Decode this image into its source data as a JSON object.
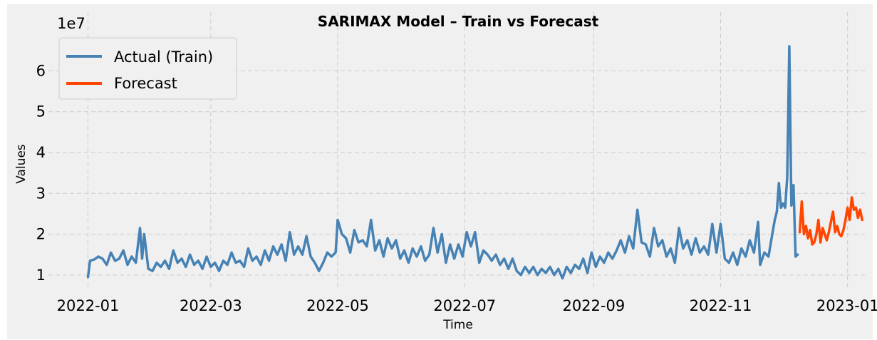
{
  "chart_data": {
    "type": "line",
    "title": "SARIMAX Model – Train vs Forecast",
    "xlabel": "Time",
    "ylabel": "Values",
    "y_offset_label": "1e7",
    "xlim": [
      "2021-12-13",
      "2023-01-10"
    ],
    "ylim": [
      0.7,
      6.95
    ],
    "x_ticks": [
      "2022-01",
      "2022-03",
      "2022-05",
      "2022-07",
      "2022-09",
      "2022-11",
      "2023-01"
    ],
    "y_ticks": [
      1,
      2,
      3,
      4,
      5,
      6
    ],
    "grid": true,
    "legend_position": "top-left",
    "series": [
      {
        "name": "Actual (Train)",
        "color": "#4682b4",
        "points": [
          [
            "2022-01-01",
            0.95
          ],
          [
            "2022-01-02",
            1.35
          ],
          [
            "2022-01-04",
            1.38
          ],
          [
            "2022-01-06",
            1.45
          ],
          [
            "2022-01-08",
            1.4
          ],
          [
            "2022-01-10",
            1.25
          ],
          [
            "2022-01-12",
            1.55
          ],
          [
            "2022-01-14",
            1.35
          ],
          [
            "2022-01-16",
            1.4
          ],
          [
            "2022-01-18",
            1.6
          ],
          [
            "2022-01-20",
            1.25
          ],
          [
            "2022-01-22",
            1.45
          ],
          [
            "2022-01-24",
            1.3
          ],
          [
            "2022-01-26",
            2.15
          ],
          [
            "2022-01-27",
            1.4
          ],
          [
            "2022-01-28",
            2.0
          ],
          [
            "2022-01-30",
            1.15
          ],
          [
            "2022-02-01",
            1.1
          ],
          [
            "2022-02-03",
            1.3
          ],
          [
            "2022-02-05",
            1.2
          ],
          [
            "2022-02-07",
            1.35
          ],
          [
            "2022-02-09",
            1.15
          ],
          [
            "2022-02-11",
            1.6
          ],
          [
            "2022-02-13",
            1.3
          ],
          [
            "2022-02-15",
            1.4
          ],
          [
            "2022-02-17",
            1.2
          ],
          [
            "2022-02-19",
            1.5
          ],
          [
            "2022-02-21",
            1.25
          ],
          [
            "2022-02-23",
            1.35
          ],
          [
            "2022-02-25",
            1.15
          ],
          [
            "2022-02-27",
            1.45
          ],
          [
            "2022-03-01",
            1.2
          ],
          [
            "2022-03-03",
            1.3
          ],
          [
            "2022-03-05",
            1.1
          ],
          [
            "2022-03-07",
            1.35
          ],
          [
            "2022-03-09",
            1.25
          ],
          [
            "2022-03-11",
            1.55
          ],
          [
            "2022-03-13",
            1.3
          ],
          [
            "2022-03-15",
            1.35
          ],
          [
            "2022-03-17",
            1.2
          ],
          [
            "2022-03-19",
            1.65
          ],
          [
            "2022-03-21",
            1.35
          ],
          [
            "2022-03-23",
            1.45
          ],
          [
            "2022-03-25",
            1.25
          ],
          [
            "2022-03-27",
            1.6
          ],
          [
            "2022-03-29",
            1.35
          ],
          [
            "2022-03-31",
            1.7
          ],
          [
            "2022-04-02",
            1.5
          ],
          [
            "2022-04-04",
            1.75
          ],
          [
            "2022-04-06",
            1.35
          ],
          [
            "2022-04-08",
            2.05
          ],
          [
            "2022-04-10",
            1.5
          ],
          [
            "2022-04-12",
            1.7
          ],
          [
            "2022-04-14",
            1.5
          ],
          [
            "2022-04-16",
            1.95
          ],
          [
            "2022-04-18",
            1.45
          ],
          [
            "2022-04-20",
            1.3
          ],
          [
            "2022-04-22",
            1.1
          ],
          [
            "2022-04-24",
            1.3
          ],
          [
            "2022-04-26",
            1.55
          ],
          [
            "2022-04-28",
            1.45
          ],
          [
            "2022-04-30",
            1.55
          ],
          [
            "2022-05-01",
            2.35
          ],
          [
            "2022-05-03",
            2.0
          ],
          [
            "2022-05-05",
            1.9
          ],
          [
            "2022-05-07",
            1.55
          ],
          [
            "2022-05-09",
            2.1
          ],
          [
            "2022-05-11",
            1.8
          ],
          [
            "2022-05-13",
            1.85
          ],
          [
            "2022-05-15",
            1.7
          ],
          [
            "2022-05-17",
            2.35
          ],
          [
            "2022-05-19",
            1.6
          ],
          [
            "2022-05-21",
            1.85
          ],
          [
            "2022-05-23",
            1.45
          ],
          [
            "2022-05-25",
            1.9
          ],
          [
            "2022-05-27",
            1.65
          ],
          [
            "2022-05-29",
            1.85
          ],
          [
            "2022-05-31",
            1.4
          ],
          [
            "2022-06-02",
            1.6
          ],
          [
            "2022-06-04",
            1.3
          ],
          [
            "2022-06-06",
            1.65
          ],
          [
            "2022-06-08",
            1.45
          ],
          [
            "2022-06-10",
            1.7
          ],
          [
            "2022-06-12",
            1.35
          ],
          [
            "2022-06-14",
            1.5
          ],
          [
            "2022-06-16",
            2.15
          ],
          [
            "2022-06-18",
            1.55
          ],
          [
            "2022-06-20",
            2.0
          ],
          [
            "2022-06-22",
            1.3
          ],
          [
            "2022-06-24",
            1.75
          ],
          [
            "2022-06-26",
            1.4
          ],
          [
            "2022-06-28",
            1.75
          ],
          [
            "2022-06-30",
            1.45
          ],
          [
            "2022-07-02",
            2.05
          ],
          [
            "2022-07-04",
            1.7
          ],
          [
            "2022-07-06",
            2.05
          ],
          [
            "2022-07-08",
            1.3
          ],
          [
            "2022-07-10",
            1.6
          ],
          [
            "2022-07-12",
            1.5
          ],
          [
            "2022-07-14",
            1.35
          ],
          [
            "2022-07-16",
            1.5
          ],
          [
            "2022-07-18",
            1.25
          ],
          [
            "2022-07-20",
            1.4
          ],
          [
            "2022-07-22",
            1.15
          ],
          [
            "2022-07-24",
            1.4
          ],
          [
            "2022-07-26",
            1.1
          ],
          [
            "2022-07-28",
            1.0
          ],
          [
            "2022-07-30",
            1.2
          ],
          [
            "2022-08-01",
            1.05
          ],
          [
            "2022-08-03",
            1.2
          ],
          [
            "2022-08-05",
            1.0
          ],
          [
            "2022-08-07",
            1.15
          ],
          [
            "2022-08-09",
            1.05
          ],
          [
            "2022-08-11",
            1.2
          ],
          [
            "2022-08-13",
            1.0
          ],
          [
            "2022-08-15",
            1.15
          ],
          [
            "2022-08-17",
            0.92
          ],
          [
            "2022-08-19",
            1.2
          ],
          [
            "2022-08-21",
            1.05
          ],
          [
            "2022-08-23",
            1.25
          ],
          [
            "2022-08-25",
            1.15
          ],
          [
            "2022-08-27",
            1.4
          ],
          [
            "2022-08-29",
            1.05
          ],
          [
            "2022-08-31",
            1.55
          ],
          [
            "2022-09-02",
            1.2
          ],
          [
            "2022-09-04",
            1.45
          ],
          [
            "2022-09-06",
            1.3
          ],
          [
            "2022-09-08",
            1.55
          ],
          [
            "2022-09-10",
            1.4
          ],
          [
            "2022-09-12",
            1.6
          ],
          [
            "2022-09-14",
            1.85
          ],
          [
            "2022-09-16",
            1.55
          ],
          [
            "2022-09-18",
            1.95
          ],
          [
            "2022-09-20",
            1.65
          ],
          [
            "2022-09-22",
            2.6
          ],
          [
            "2022-09-24",
            1.8
          ],
          [
            "2022-09-26",
            1.75
          ],
          [
            "2022-09-28",
            1.45
          ],
          [
            "2022-09-30",
            2.15
          ],
          [
            "2022-10-02",
            1.7
          ],
          [
            "2022-10-04",
            1.85
          ],
          [
            "2022-10-06",
            1.45
          ],
          [
            "2022-10-08",
            1.65
          ],
          [
            "2022-10-10",
            1.3
          ],
          [
            "2022-10-12",
            2.15
          ],
          [
            "2022-10-14",
            1.65
          ],
          [
            "2022-10-16",
            1.85
          ],
          [
            "2022-10-18",
            1.5
          ],
          [
            "2022-10-20",
            1.9
          ],
          [
            "2022-10-22",
            1.55
          ],
          [
            "2022-10-24",
            1.7
          ],
          [
            "2022-10-26",
            1.5
          ],
          [
            "2022-10-28",
            2.25
          ],
          [
            "2022-10-30",
            1.55
          ],
          [
            "2022-11-01",
            2.25
          ],
          [
            "2022-11-03",
            1.4
          ],
          [
            "2022-11-05",
            1.3
          ],
          [
            "2022-11-07",
            1.55
          ],
          [
            "2022-11-09",
            1.25
          ],
          [
            "2022-11-11",
            1.65
          ],
          [
            "2022-11-13",
            1.45
          ],
          [
            "2022-11-15",
            1.85
          ],
          [
            "2022-11-17",
            1.55
          ],
          [
            "2022-11-19",
            2.3
          ],
          [
            "2022-11-20",
            1.25
          ],
          [
            "2022-11-22",
            1.55
          ],
          [
            "2022-11-24",
            1.45
          ],
          [
            "2022-11-26",
            2.05
          ],
          [
            "2022-11-27",
            2.35
          ],
          [
            "2022-11-28",
            2.55
          ],
          [
            "2022-11-29",
            3.25
          ],
          [
            "2022-11-30",
            2.65
          ],
          [
            "2022-12-01",
            2.75
          ],
          [
            "2022-12-02",
            2.65
          ],
          [
            "2022-12-03",
            3.4
          ],
          [
            "2022-12-04",
            6.6
          ],
          [
            "2022-12-05",
            2.7
          ],
          [
            "2022-12-06",
            3.2
          ],
          [
            "2022-12-07",
            1.45
          ],
          [
            "2022-12-08",
            1.5
          ]
        ]
      },
      {
        "name": "Forecast",
        "color": "#ff4500",
        "points": [
          [
            "2022-12-09",
            2.05
          ],
          [
            "2022-12-10",
            2.8
          ],
          [
            "2022-12-11",
            2.0
          ],
          [
            "2022-12-12",
            2.2
          ],
          [
            "2022-12-13",
            1.9
          ],
          [
            "2022-12-14",
            2.1
          ],
          [
            "2022-12-15",
            1.75
          ],
          [
            "2022-12-16",
            1.8
          ],
          [
            "2022-12-17",
            2.0
          ],
          [
            "2022-12-18",
            2.35
          ],
          [
            "2022-12-19",
            1.8
          ],
          [
            "2022-12-20",
            2.15
          ],
          [
            "2022-12-21",
            2.0
          ],
          [
            "2022-12-22",
            1.85
          ],
          [
            "2022-12-23",
            2.05
          ],
          [
            "2022-12-24",
            2.3
          ],
          [
            "2022-12-25",
            2.55
          ],
          [
            "2022-12-26",
            2.05
          ],
          [
            "2022-12-27",
            2.2
          ],
          [
            "2022-12-28",
            2.0
          ],
          [
            "2022-12-29",
            1.95
          ],
          [
            "2022-12-30",
            2.1
          ],
          [
            "2022-12-31",
            2.35
          ],
          [
            "2023-01-01",
            2.65
          ],
          [
            "2023-01-02",
            2.35
          ],
          [
            "2023-01-03",
            2.9
          ],
          [
            "2023-01-04",
            2.6
          ],
          [
            "2023-01-05",
            2.65
          ],
          [
            "2023-01-06",
            2.4
          ],
          [
            "2023-01-07",
            2.6
          ],
          [
            "2023-01-08",
            2.35
          ]
        ]
      }
    ]
  }
}
